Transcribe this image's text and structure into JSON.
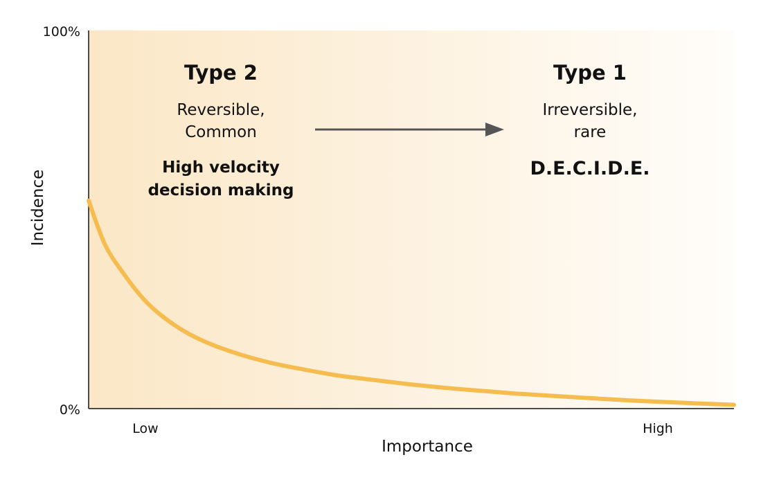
{
  "chart_data": {
    "type": "line",
    "title": "",
    "xlabel": "Importance",
    "ylabel": "Incidence",
    "x_tick_labels": [
      "Low",
      "High"
    ],
    "y_tick_labels": [
      "0%",
      "100%"
    ],
    "ylim": [
      0,
      100
    ],
    "xlim": [
      0,
      100
    ],
    "grid": false,
    "legend": "none",
    "series": [
      {
        "color": "#f5bd4f",
        "x": [
          0,
          2.5,
          5.5,
          8.5,
          11,
          14,
          17,
          20.5,
          24.5,
          29,
          33.5,
          38.5,
          44.5,
          51,
          58,
          66,
          74.5,
          83.5,
          92.5,
          100
        ],
        "y": [
          55,
          43.5,
          35.5,
          29,
          25,
          21.3,
          18.5,
          16,
          13.8,
          11.8,
          10.3,
          8.8,
          7.5,
          6.2,
          5.1,
          4,
          3.1,
          2.2,
          1.5,
          1
        ]
      }
    ],
    "annotations": {
      "left": {
        "heading": "Type 2",
        "line1": "Reversible,",
        "line2": "Common",
        "bold1": "High velocity",
        "bold2": "decision making"
      },
      "right": {
        "heading": "Type 1",
        "line1": "Irreversible,",
        "line2": "rare",
        "bold1": "D.E.C.I.D.E."
      },
      "arrow": "Type 2 → Type 1"
    },
    "background_gradient": [
      "#fbe7c6",
      "#fffdfa"
    ]
  }
}
